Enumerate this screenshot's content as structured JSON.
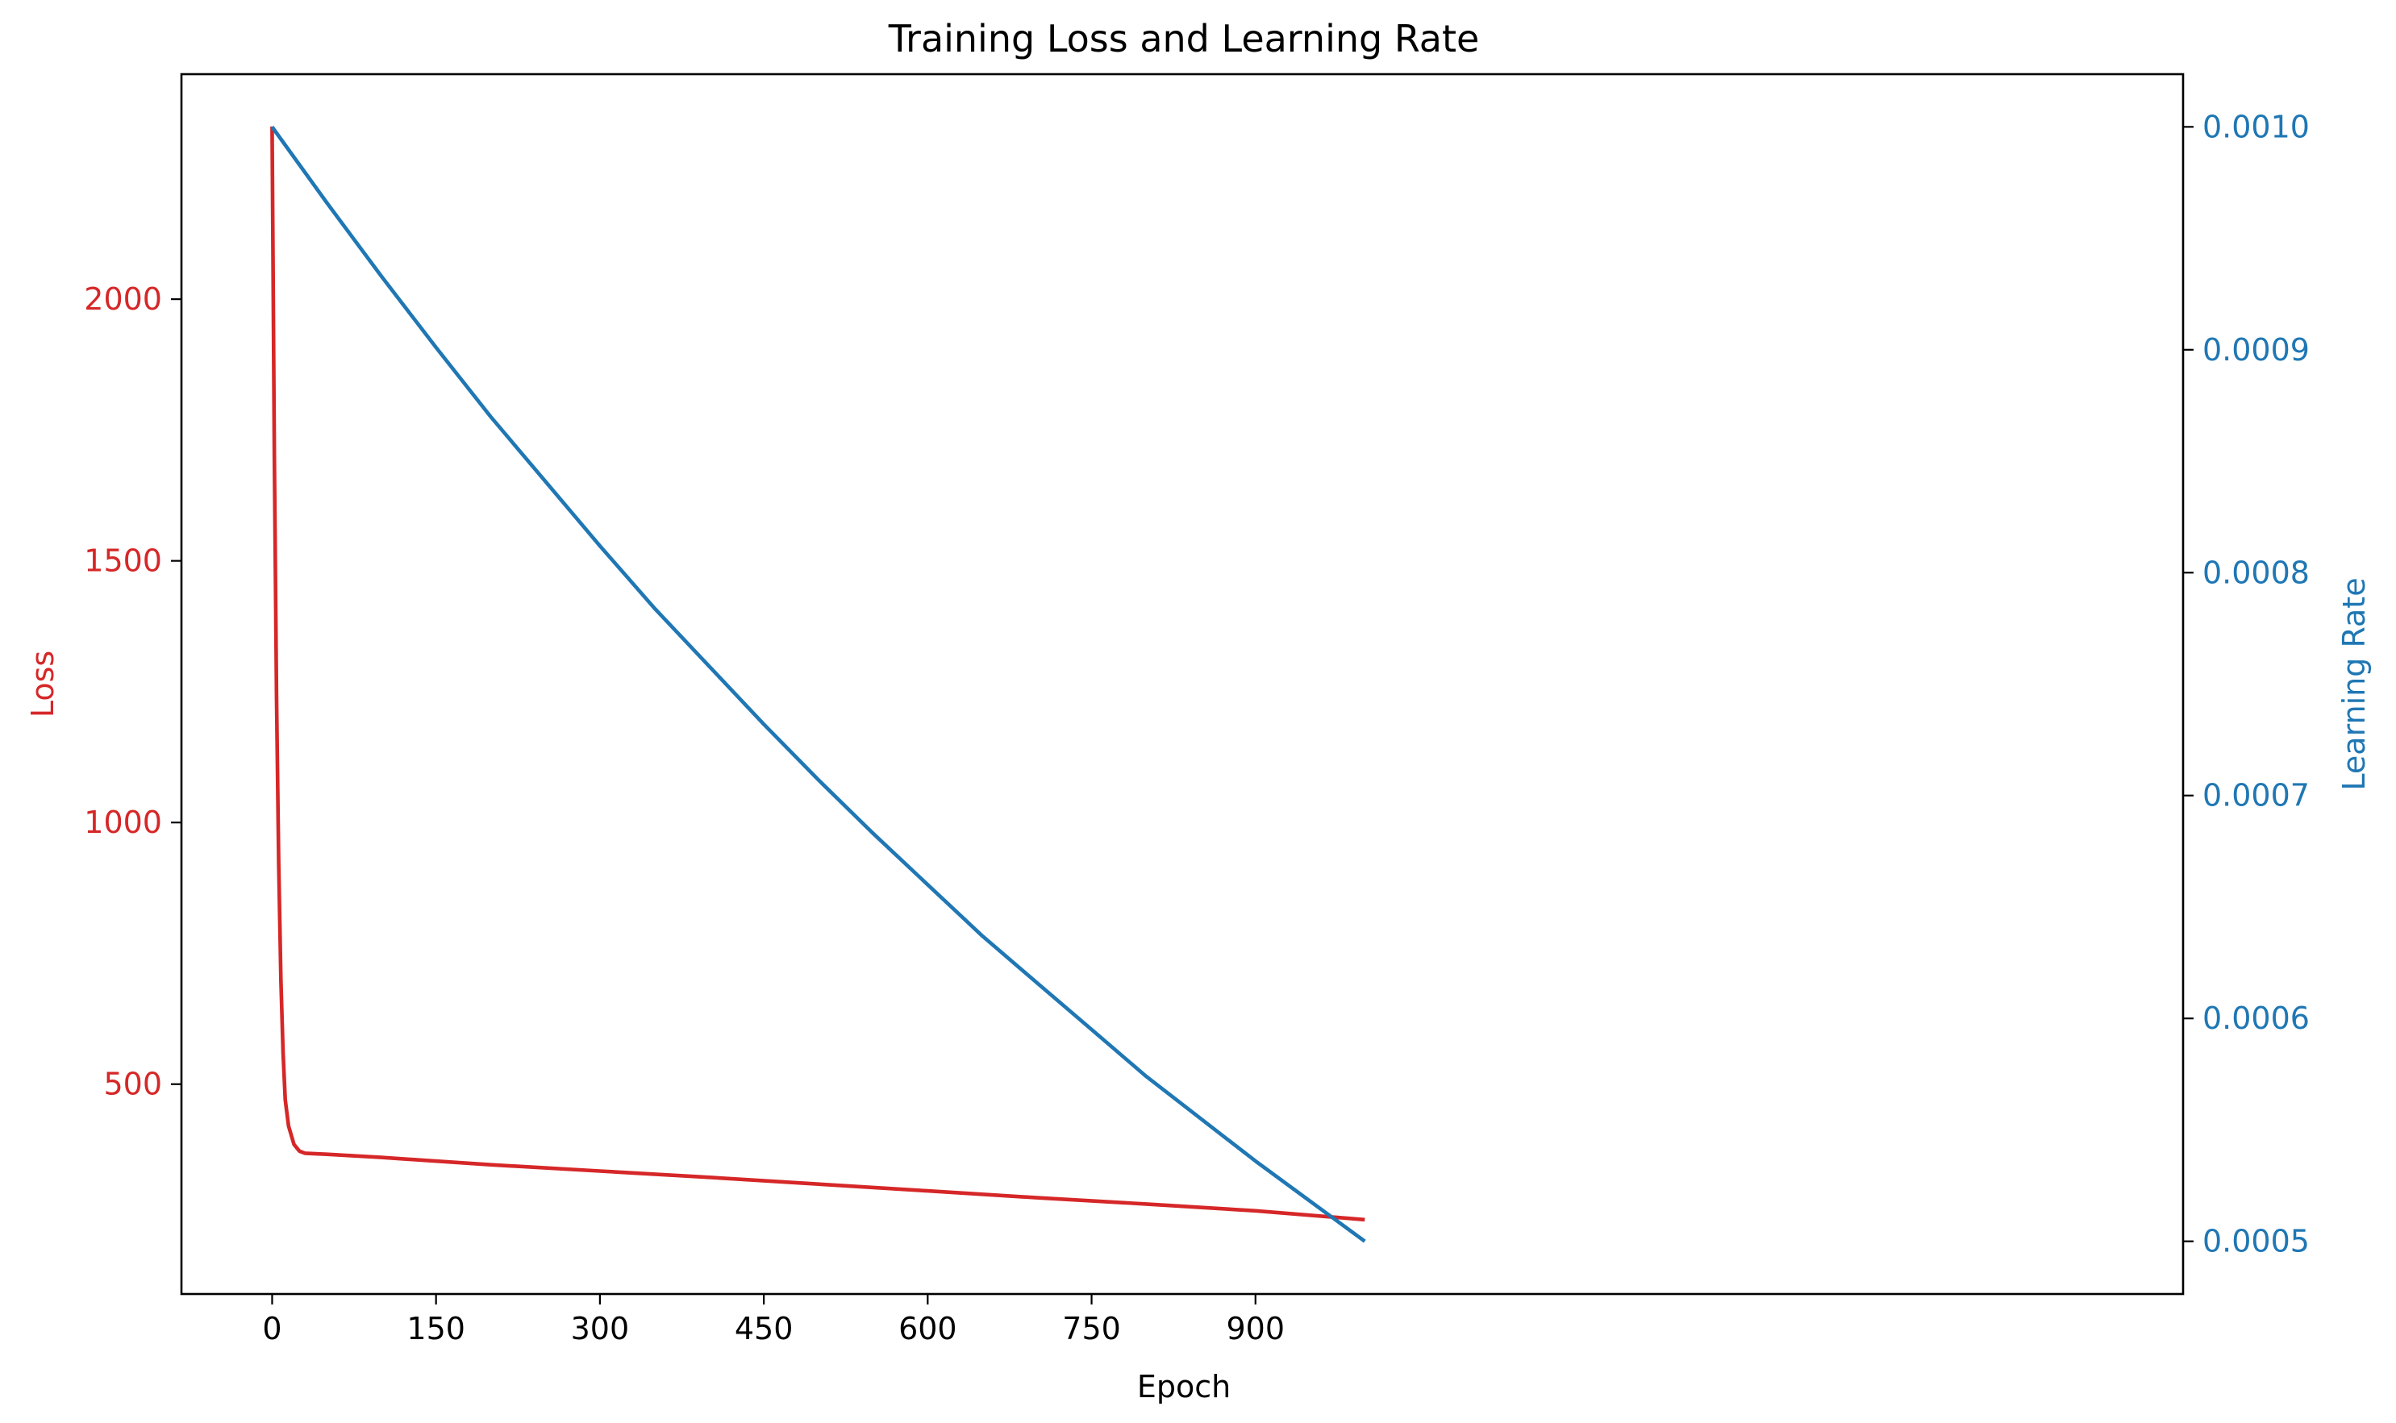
{
  "chart_data": {
    "type": "line",
    "title": "Training Loss and Learning Rate",
    "xlabel": "Epoch",
    "ylabel_left": "Loss",
    "ylabel_right": "Learning Rate",
    "xlim": [
      -83,
      1749
    ],
    "ylim_left": [
      99,
      2430
    ],
    "ylim_right": [
      0.00047636,
      0.00102364
    ],
    "x_ticks": [
      0,
      150,
      300,
      450,
      600,
      750,
      900
    ],
    "y_left_ticks": [
      500,
      1000,
      1500,
      2000
    ],
    "y_right_ticks": [
      "0.0005",
      "0.0006",
      "0.0007",
      "0.0008",
      "0.0009",
      "0.0010"
    ],
    "grid": false,
    "colors": {
      "loss": "#d62728",
      "learning_rate": "#1f77b4",
      "axes": "#000000"
    },
    "series": [
      {
        "name": "Loss",
        "axis": "left",
        "color": "#d62728",
        "x": [
          0,
          2,
          4,
          6,
          8,
          10,
          12,
          15,
          20,
          25,
          30,
          50,
          100,
          200,
          300,
          400,
          500,
          600,
          700,
          800,
          900,
          1000
        ],
        "y": [
          2330,
          1700,
          1240,
          920,
          700,
          560,
          470,
          420,
          385,
          372,
          368,
          366,
          360,
          346,
          334,
          322,
          309,
          296,
          283,
          271,
          258,
          241
        ]
      },
      {
        "name": "Learning Rate",
        "axis": "right",
        "color": "#1f77b4",
        "x": [
          0,
          50,
          100,
          150,
          200,
          250,
          300,
          350,
          400,
          450,
          500,
          550,
          600,
          650,
          700,
          750,
          800,
          850,
          900,
          950,
          1000
        ],
        "y": [
          0.001,
          0.000966,
          0.000933,
          0.000901,
          0.00087,
          0.000841,
          0.000812,
          0.000784,
          0.000758,
          0.000732,
          0.000707,
          0.000683,
          0.00066,
          0.000637,
          0.000616,
          0.000595,
          0.000574,
          0.000555,
          0.000536,
          0.000518,
          0.0005
        ]
      }
    ]
  }
}
